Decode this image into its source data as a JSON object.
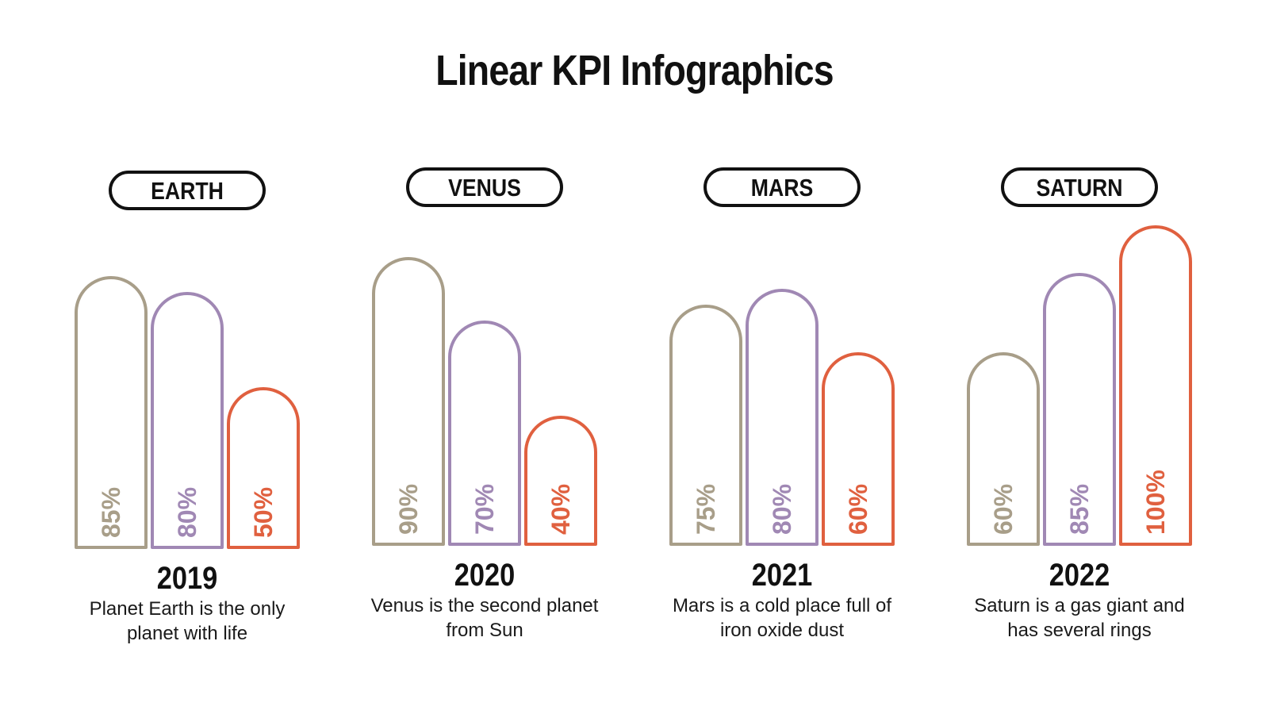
{
  "title": "Linear KPI Infographics",
  "colors": {
    "series1": "#a89e89",
    "series2": "#a088b4",
    "series3": "#e0603f",
    "text": "#111111"
  },
  "chart_data": [
    {
      "type": "bar",
      "title": "EARTH",
      "xlabel": "2019",
      "description": "Planet Earth is the only planet with life",
      "categories": [
        "",
        "",
        ""
      ],
      "values": [
        85,
        80,
        50
      ],
      "labels": [
        "85%",
        "80%",
        "50%"
      ],
      "ylim": [
        0,
        100
      ]
    },
    {
      "type": "bar",
      "title": "VENUS",
      "xlabel": "2020",
      "description": "Venus is the second planet from Sun",
      "categories": [
        "",
        "",
        ""
      ],
      "values": [
        90,
        70,
        40
      ],
      "labels": [
        "90%",
        "70%",
        "40%"
      ],
      "ylim": [
        0,
        100
      ]
    },
    {
      "type": "bar",
      "title": "MARS",
      "xlabel": "2021",
      "description": "Mars is a cold place full of iron oxide dust",
      "categories": [
        "",
        "",
        ""
      ],
      "values": [
        75,
        80,
        60
      ],
      "labels": [
        "75%",
        "80%",
        "60%"
      ],
      "ylim": [
        0,
        100
      ]
    },
    {
      "type": "bar",
      "title": "SATURN",
      "xlabel": "2022",
      "description": "Saturn is a gas giant and has several rings",
      "categories": [
        "",
        "",
        ""
      ],
      "values": [
        60,
        85,
        100
      ],
      "labels": [
        "60%",
        "85%",
        "100%"
      ],
      "ylim": [
        0,
        100
      ]
    }
  ]
}
